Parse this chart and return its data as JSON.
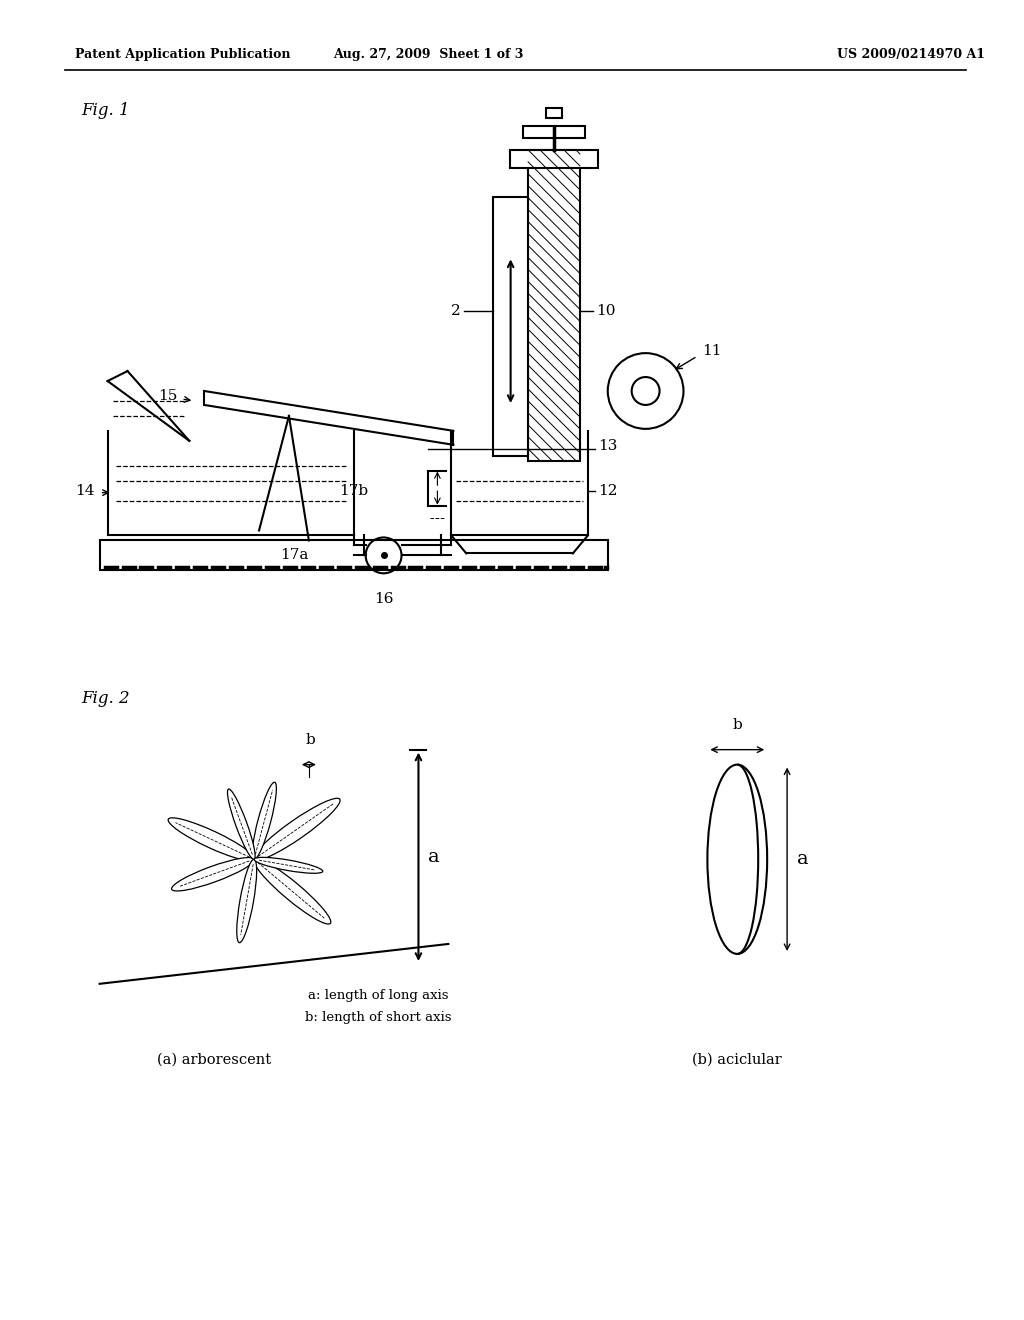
{
  "bg_color": "#ffffff",
  "line_color": "#000000",
  "header_left": "Patent Application Publication",
  "header_mid": "Aug. 27, 2009  Sheet 1 of 3",
  "header_right": "US 2009/0214970 A1",
  "fig1_label": "Fig. 1",
  "fig2_label": "Fig. 2",
  "fig2_caption_a": "a: length of long axis",
  "fig2_caption_b": "b: length of short axis",
  "fig2_label_a": "(a) arborescent",
  "fig2_label_b": "(b) aciclular"
}
